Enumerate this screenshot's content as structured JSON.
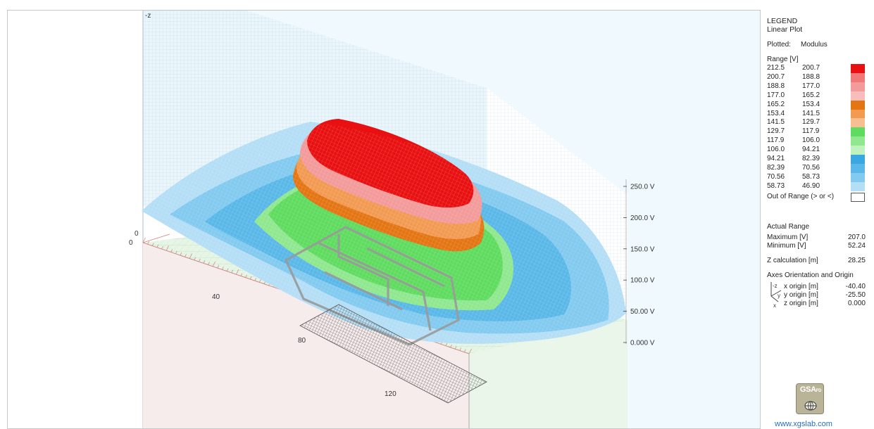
{
  "chart_data": {
    "type": "surface-3d",
    "title": "",
    "axes": {
      "vertical_label": "-z",
      "z_ticks": [
        "0.000 V",
        "50.00 V",
        "100.0 V",
        "150.0 V",
        "200.0 V",
        "250.0 V"
      ],
      "length_ticks": [
        "0",
        "40",
        "80",
        "120"
      ],
      "width_ticks": [
        "0"
      ]
    },
    "surface": {
      "quantity": "Modulus",
      "units": "V",
      "maximum": 207.0,
      "minimum": 52.24
    }
  },
  "legend": {
    "title": "LEGEND",
    "subtitle": "Linear Plot",
    "plotted_label": "Plotted:",
    "plotted_value": "Modulus",
    "range_label": "Range [V]",
    "ranges": [
      {
        "from": "212.5",
        "to": "200.7",
        "color": "#e81010"
      },
      {
        "from": "200.7",
        "to": "188.8",
        "color": "#f07878"
      },
      {
        "from": "188.8",
        "to": "177.0",
        "color": "#f39a9a"
      },
      {
        "from": "177.0",
        "to": "165.2",
        "color": "#f7bcbc"
      },
      {
        "from": "165.2",
        "to": "153.4",
        "color": "#e37513"
      },
      {
        "from": "153.4",
        "to": "141.5",
        "color": "#f29a52"
      },
      {
        "from": "141.5",
        "to": "129.7",
        "color": "#f7be92"
      },
      {
        "from": "129.7",
        "to": "117.9",
        "color": "#5fdc5f"
      },
      {
        "from": "117.9",
        "to": "106.0",
        "color": "#8fe88f"
      },
      {
        "from": "106.0",
        "to": "94.21",
        "color": "#c0f2c0"
      },
      {
        "from": "94.21",
        "to": "82.39",
        "color": "#3aa8e0"
      },
      {
        "from": "82.39",
        "to": "70.56",
        "color": "#5ab8e8"
      },
      {
        "from": "70.56",
        "to": "58.73",
        "color": "#82caef"
      },
      {
        "from": "58.73",
        "to": "46.90",
        "color": "#b4def6"
      }
    ],
    "out_of_range_label": "Out of Range (> or <)",
    "actual_range_label": "Actual Range",
    "maximum_label": "Maximum [V]",
    "maximum_value": "207.0",
    "minimum_label": "Minimum [V]",
    "minimum_value": "52.24",
    "zcalc_label": "Z calculation [m]",
    "zcalc_value": "28.25",
    "axes_label": "Axes Orientation and Origin",
    "triad": {
      "z": "-z",
      "y": "y",
      "x": "x"
    },
    "origins": [
      {
        "label": "x origin [m]",
        "value": "-40.40"
      },
      {
        "label": "y origin [m]",
        "value": "-25.50"
      },
      {
        "label": "z origin [m]",
        "value": "0.000"
      }
    ]
  },
  "brand": {
    "logo_text": "GSA",
    "logo_sub": "FD",
    "logo_icon": "globe-icon",
    "website": "www.xgslab.com"
  }
}
